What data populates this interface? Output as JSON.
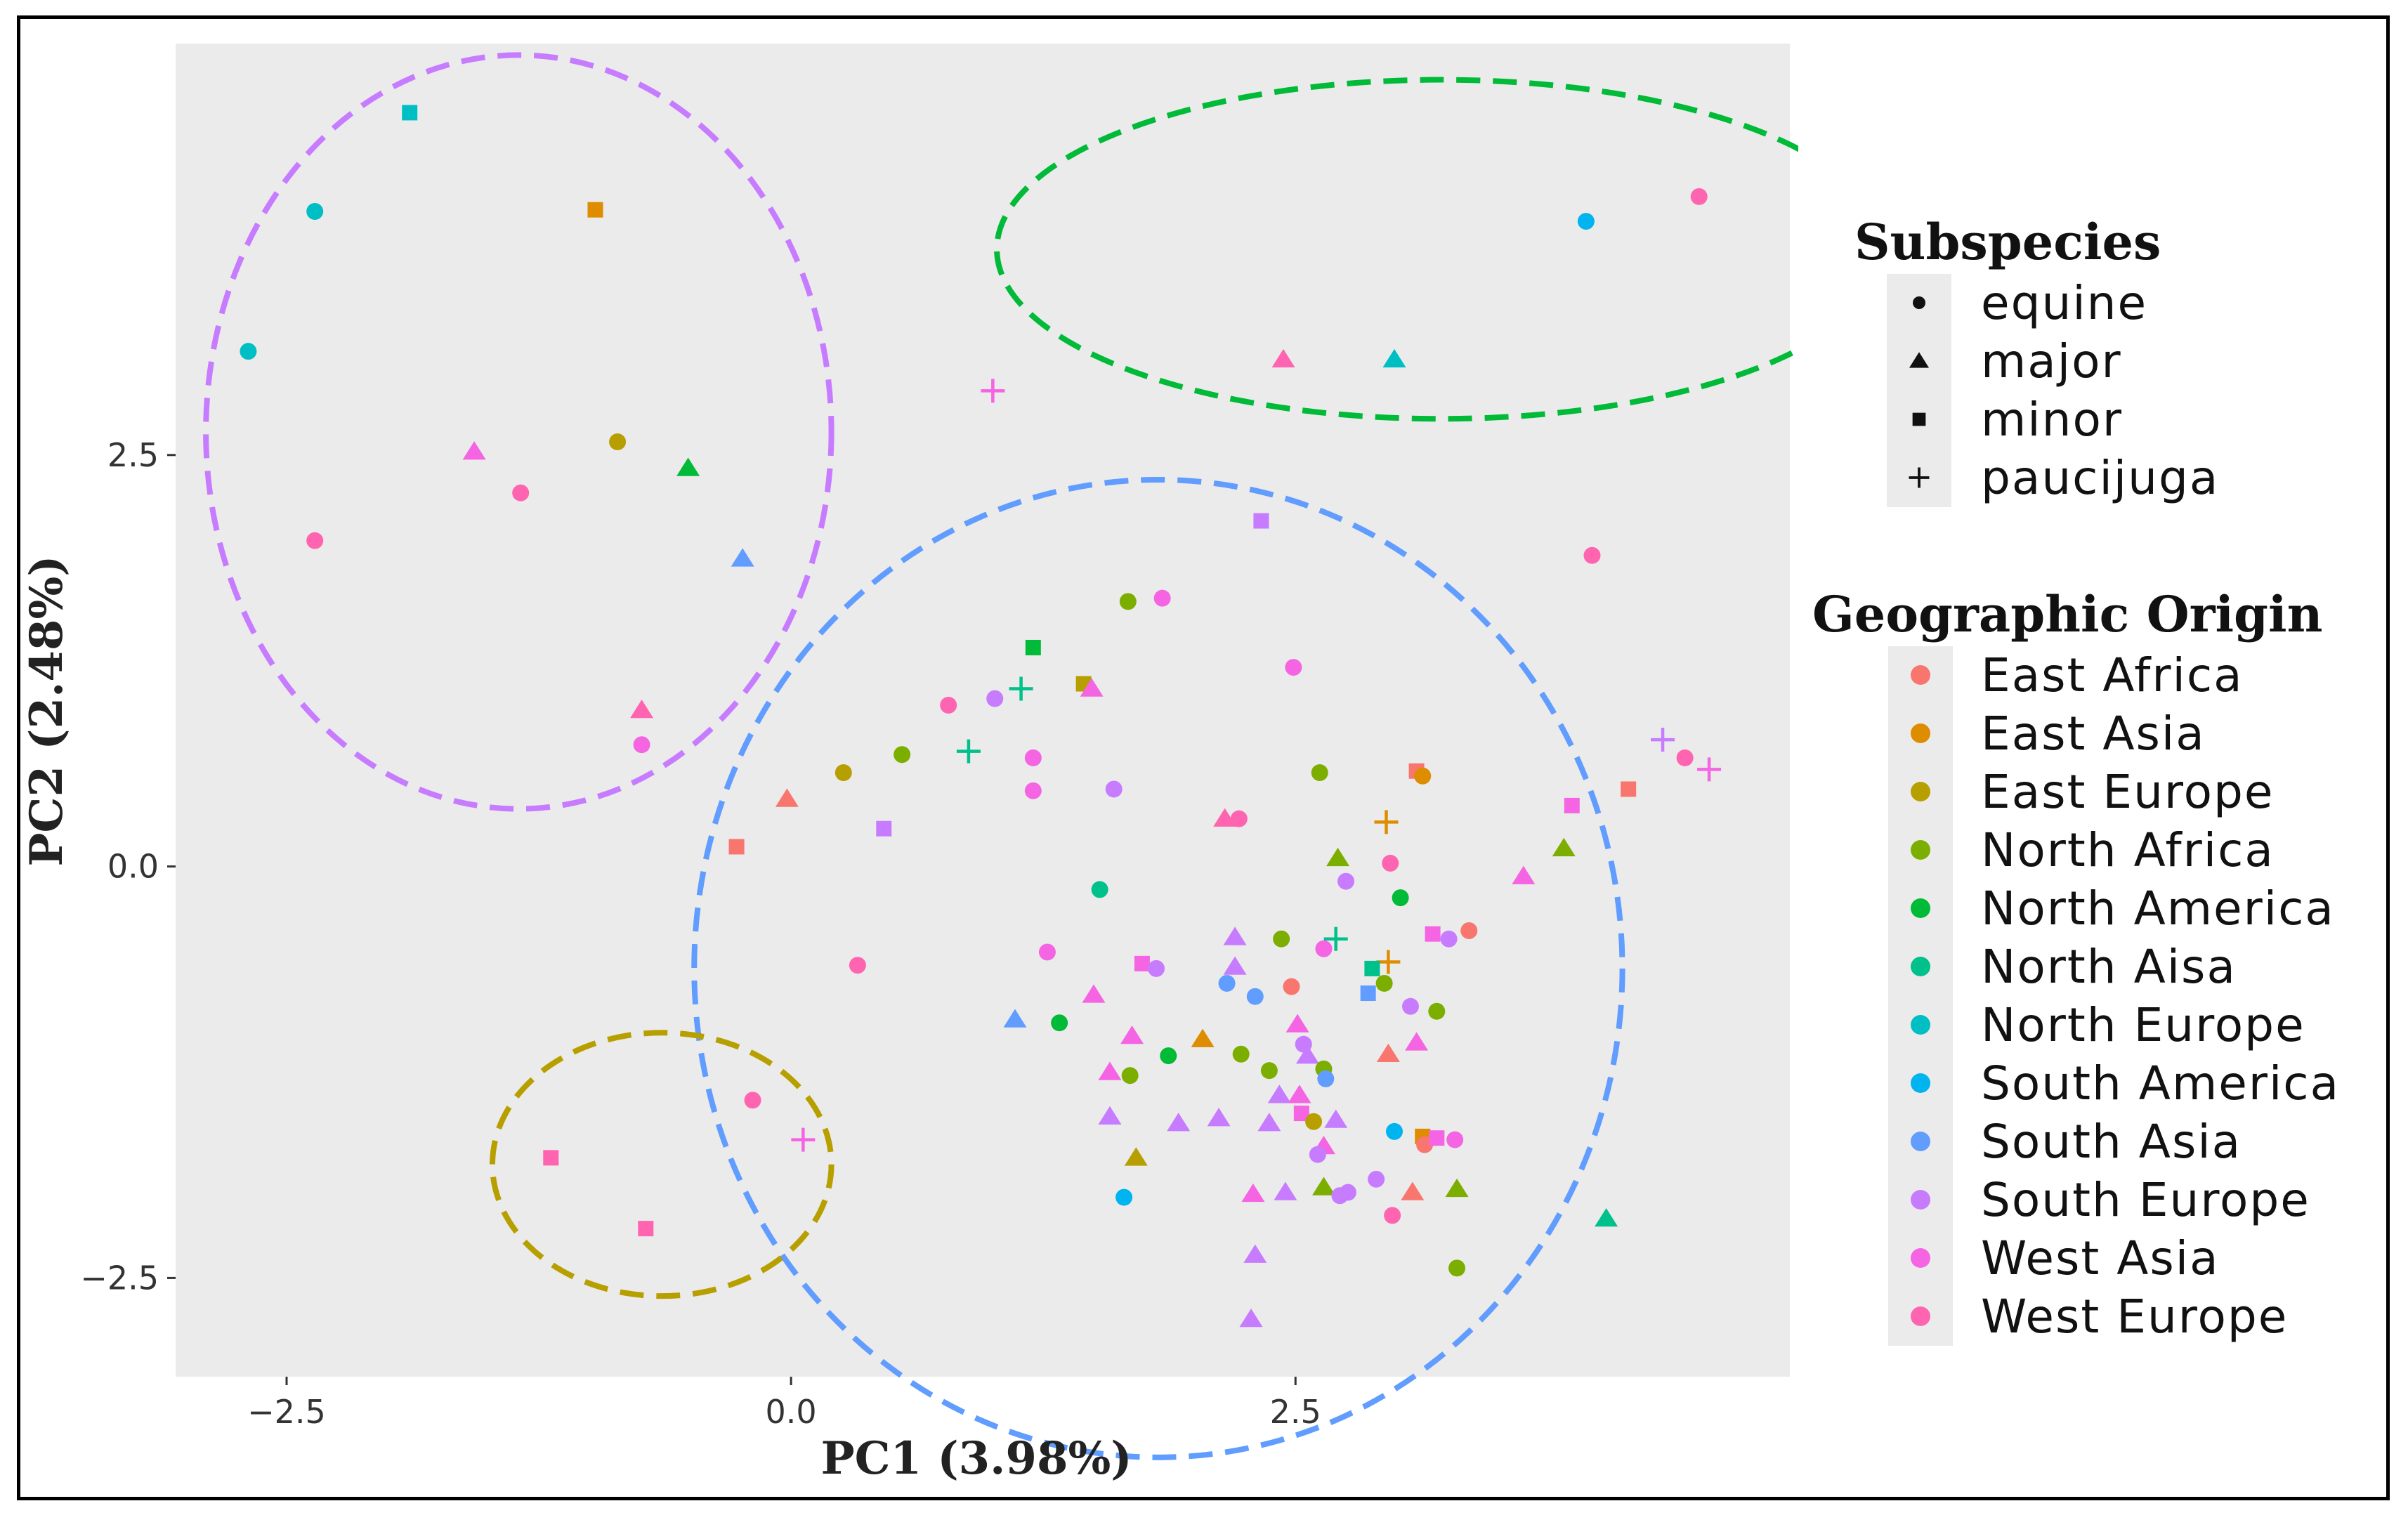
{
  "chart_data": {
    "type": "scatter",
    "title": "",
    "xlabel": "PC1 (3.98%)",
    "ylabel": "PC2 (2.48%)",
    "xlim": [
      -3.05,
      4.95
    ],
    "ylim": [
      -3.1,
      5.0
    ],
    "xticks": [
      -2.5,
      0.0,
      2.5
    ],
    "yticks": [
      2.5,
      0.0,
      -2.5
    ],
    "xtick_labels": [
      "−2.5",
      "0.0",
      "2.5"
    ],
    "ytick_labels": [
      "2.5",
      "0.0",
      "−2.5"
    ],
    "grid": false,
    "panel_background": "#ebebeb",
    "legend_subspecies": {
      "title": "Subspecies",
      "items": [
        {
          "label": "equine",
          "shape": "circle"
        },
        {
          "label": "major",
          "shape": "triangle"
        },
        {
          "label": "minor",
          "shape": "square"
        },
        {
          "label": "paucijuga",
          "shape": "plus"
        }
      ]
    },
    "legend_origin": {
      "title": "Geographic Origin",
      "items": [
        {
          "label": "East Africa",
          "color": "#F8766D"
        },
        {
          "label": "East Asia",
          "color": "#DE8C00"
        },
        {
          "label": "East Europe",
          "color": "#B79F00"
        },
        {
          "label": "North Africa",
          "color": "#7CAE00"
        },
        {
          "label": "North America",
          "color": "#00BA38"
        },
        {
          "label": "North Aisa",
          "color": "#00C08B"
        },
        {
          "label": "North Europe",
          "color": "#00BFC4"
        },
        {
          "label": "South America",
          "color": "#00B4F0"
        },
        {
          "label": "South Asia",
          "color": "#619CFF"
        },
        {
          "label": "South Europe",
          "color": "#C77CFF"
        },
        {
          "label": "West Asia",
          "color": "#F564E3"
        },
        {
          "label": "West Europe",
          "color": "#FF64B0"
        }
      ]
    },
    "ellipses": [
      {
        "name": "purple-cluster",
        "color": "#C77CFF",
        "cx": -1.35,
        "cy": 2.64,
        "rx": 1.55,
        "ry": 2.29
      },
      {
        "name": "green-cluster",
        "color": "#00BA38",
        "cx": 3.22,
        "cy": 3.75,
        "rx": 2.2,
        "ry": 1.03
      },
      {
        "name": "blue-cluster",
        "color": "#619CFF",
        "cx": 1.82,
        "cy": -0.62,
        "rx": 2.3,
        "ry": 2.97
      },
      {
        "name": "olive-cluster",
        "color": "#B79F00",
        "cx": -0.64,
        "cy": -1.81,
        "rx": 0.84,
        "ry": 0.8
      }
    ],
    "points": [
      {
        "x": -1.89,
        "y": 4.58,
        "shape": "square",
        "origin": "North Europe"
      },
      {
        "x": -2.36,
        "y": 3.98,
        "shape": "circle",
        "origin": "North Europe"
      },
      {
        "x": -0.97,
        "y": 3.99,
        "shape": "square",
        "origin": "East Asia"
      },
      {
        "x": -2.69,
        "y": 3.13,
        "shape": "circle",
        "origin": "North Europe"
      },
      {
        "x": -1.57,
        "y": 2.52,
        "shape": "triangle",
        "origin": "West Asia"
      },
      {
        "x": -0.86,
        "y": 2.58,
        "shape": "circle",
        "origin": "East Europe"
      },
      {
        "x": -0.51,
        "y": 2.42,
        "shape": "triangle",
        "origin": "North America"
      },
      {
        "x": -1.34,
        "y": 2.27,
        "shape": "circle",
        "origin": "West Europe"
      },
      {
        "x": -2.36,
        "y": 1.98,
        "shape": "circle",
        "origin": "West Europe"
      },
      {
        "x": -0.24,
        "y": 1.87,
        "shape": "triangle",
        "origin": "South Asia"
      },
      {
        "x": -0.74,
        "y": 0.95,
        "shape": "triangle",
        "origin": "West Europe"
      },
      {
        "x": -0.74,
        "y": 0.74,
        "shape": "circle",
        "origin": "West Asia"
      },
      {
        "x": -0.19,
        "y": -1.42,
        "shape": "circle",
        "origin": "West Europe"
      },
      {
        "x": -1.19,
        "y": -1.77,
        "shape": "square",
        "origin": "West Europe"
      },
      {
        "x": -0.72,
        "y": -2.2,
        "shape": "square",
        "origin": "West Europe"
      },
      {
        "x": 0.06,
        "y": -1.66,
        "shape": "plus",
        "origin": "West Asia"
      },
      {
        "x": 1.0,
        "y": 2.89,
        "shape": "plus",
        "origin": "West Asia"
      },
      {
        "x": 2.44,
        "y": 3.08,
        "shape": "triangle",
        "origin": "West Europe"
      },
      {
        "x": 2.99,
        "y": 3.08,
        "shape": "triangle",
        "origin": "North Europe"
      },
      {
        "x": 3.94,
        "y": 3.92,
        "shape": "circle",
        "origin": "South America"
      },
      {
        "x": 4.5,
        "y": 4.07,
        "shape": "circle",
        "origin": "West Europe"
      },
      {
        "x": 2.33,
        "y": 2.1,
        "shape": "square",
        "origin": "South Europe"
      },
      {
        "x": 3.97,
        "y": 1.89,
        "shape": "circle",
        "origin": "West Europe"
      },
      {
        "x": 1.67,
        "y": 1.61,
        "shape": "circle",
        "origin": "North Africa"
      },
      {
        "x": 1.84,
        "y": 1.63,
        "shape": "circle",
        "origin": "West Asia"
      },
      {
        "x": 1.2,
        "y": 1.33,
        "shape": "square",
        "origin": "North America"
      },
      {
        "x": 2.49,
        "y": 1.21,
        "shape": "circle",
        "origin": "West Asia"
      },
      {
        "x": 1.14,
        "y": 1.08,
        "shape": "plus",
        "origin": "North Aisa"
      },
      {
        "x": 1.45,
        "y": 1.11,
        "shape": "square",
        "origin": "East Europe"
      },
      {
        "x": 1.49,
        "y": 1.08,
        "shape": "triangle",
        "origin": "West Asia"
      },
      {
        "x": 0.78,
        "y": 0.98,
        "shape": "circle",
        "origin": "West Europe"
      },
      {
        "x": 1.01,
        "y": 1.02,
        "shape": "circle",
        "origin": "South Europe"
      },
      {
        "x": 0.88,
        "y": 0.7,
        "shape": "plus",
        "origin": "North Aisa"
      },
      {
        "x": 0.55,
        "y": 0.68,
        "shape": "circle",
        "origin": "North Africa"
      },
      {
        "x": 1.2,
        "y": 0.66,
        "shape": "circle",
        "origin": "West Asia"
      },
      {
        "x": 0.26,
        "y": 0.57,
        "shape": "circle",
        "origin": "East Europe"
      },
      {
        "x": -0.02,
        "y": 0.41,
        "shape": "triangle",
        "origin": "East Africa"
      },
      {
        "x": 1.2,
        "y": 0.46,
        "shape": "circle",
        "origin": "West Asia"
      },
      {
        "x": 1.6,
        "y": 0.47,
        "shape": "circle",
        "origin": "South Europe"
      },
      {
        "x": 2.62,
        "y": 0.57,
        "shape": "circle",
        "origin": "North Africa"
      },
      {
        "x": 3.1,
        "y": 0.58,
        "shape": "square",
        "origin": "East Africa"
      },
      {
        "x": 3.13,
        "y": 0.55,
        "shape": "circle",
        "origin": "East Asia"
      },
      {
        "x": 0.46,
        "y": 0.23,
        "shape": "square",
        "origin": "South Europe"
      },
      {
        "x": -0.27,
        "y": 0.12,
        "shape": "square",
        "origin": "East Africa"
      },
      {
        "x": 2.15,
        "y": 0.29,
        "shape": "triangle",
        "origin": "West Europe"
      },
      {
        "x": 2.22,
        "y": 0.29,
        "shape": "circle",
        "origin": "West Europe"
      },
      {
        "x": 2.95,
        "y": 0.27,
        "shape": "plus",
        "origin": "East Asia"
      },
      {
        "x": 3.87,
        "y": 0.37,
        "shape": "square",
        "origin": "West Asia"
      },
      {
        "x": 4.15,
        "y": 0.47,
        "shape": "square",
        "origin": "East Africa"
      },
      {
        "x": 4.32,
        "y": 0.77,
        "shape": "plus",
        "origin": "South Europe"
      },
      {
        "x": 4.43,
        "y": 0.66,
        "shape": "circle",
        "origin": "West Europe"
      },
      {
        "x": 4.55,
        "y": 0.59,
        "shape": "plus",
        "origin": "West Asia"
      },
      {
        "x": 2.71,
        "y": 0.05,
        "shape": "triangle",
        "origin": "North Africa"
      },
      {
        "x": 2.97,
        "y": 0.02,
        "shape": "circle",
        "origin": "West Europe"
      },
      {
        "x": 3.83,
        "y": 0.11,
        "shape": "triangle",
        "origin": "North Africa"
      },
      {
        "x": 3.63,
        "y": -0.06,
        "shape": "triangle",
        "origin": "West Asia"
      },
      {
        "x": 2.75,
        "y": -0.09,
        "shape": "circle",
        "origin": "South Europe"
      },
      {
        "x": 1.53,
        "y": -0.14,
        "shape": "circle",
        "origin": "North Aisa"
      },
      {
        "x": 3.02,
        "y": -0.19,
        "shape": "circle",
        "origin": "North America"
      },
      {
        "x": 3.36,
        "y": -0.39,
        "shape": "circle",
        "origin": "East Africa"
      },
      {
        "x": 3.18,
        "y": -0.41,
        "shape": "square",
        "origin": "West Asia"
      },
      {
        "x": 3.26,
        "y": -0.44,
        "shape": "circle",
        "origin": "South Europe"
      },
      {
        "x": 2.43,
        "y": -0.44,
        "shape": "circle",
        "origin": "North Africa"
      },
      {
        "x": 2.7,
        "y": -0.44,
        "shape": "plus",
        "origin": "North Aisa"
      },
      {
        "x": 2.64,
        "y": -0.5,
        "shape": "circle",
        "origin": "West Asia"
      },
      {
        "x": 2.2,
        "y": -0.43,
        "shape": "triangle",
        "origin": "South Europe"
      },
      {
        "x": 2.96,
        "y": -0.58,
        "shape": "plus",
        "origin": "East Asia"
      },
      {
        "x": 2.88,
        "y": -0.62,
        "shape": "square",
        "origin": "North Aisa"
      },
      {
        "x": 0.33,
        "y": -0.6,
        "shape": "circle",
        "origin": "West Europe"
      },
      {
        "x": 1.27,
        "y": -0.52,
        "shape": "circle",
        "origin": "West Asia"
      },
      {
        "x": 1.74,
        "y": -0.59,
        "shape": "square",
        "origin": "West Asia"
      },
      {
        "x": 1.81,
        "y": -0.62,
        "shape": "circle",
        "origin": "South Europe"
      },
      {
        "x": 2.2,
        "y": -0.61,
        "shape": "triangle",
        "origin": "South Europe"
      },
      {
        "x": 2.16,
        "y": -0.71,
        "shape": "circle",
        "origin": "South Asia"
      },
      {
        "x": 2.48,
        "y": -0.73,
        "shape": "circle",
        "origin": "East Africa"
      },
      {
        "x": 2.94,
        "y": -0.71,
        "shape": "circle",
        "origin": "North Africa"
      },
      {
        "x": 2.3,
        "y": -0.79,
        "shape": "circle",
        "origin": "South Asia"
      },
      {
        "x": 2.86,
        "y": -0.77,
        "shape": "square",
        "origin": "South Asia"
      },
      {
        "x": 1.5,
        "y": -0.78,
        "shape": "triangle",
        "origin": "West Asia"
      },
      {
        "x": 3.07,
        "y": -0.85,
        "shape": "circle",
        "origin": "South Europe"
      },
      {
        "x": 3.2,
        "y": -0.88,
        "shape": "circle",
        "origin": "North Africa"
      },
      {
        "x": 1.11,
        "y": -0.93,
        "shape": "triangle",
        "origin": "South Asia"
      },
      {
        "x": 1.33,
        "y": -0.95,
        "shape": "circle",
        "origin": "North America"
      },
      {
        "x": 2.51,
        "y": -0.96,
        "shape": "triangle",
        "origin": "West Asia"
      },
      {
        "x": 1.69,
        "y": -1.03,
        "shape": "triangle",
        "origin": "West Asia"
      },
      {
        "x": 2.04,
        "y": -1.05,
        "shape": "triangle",
        "origin": "East Asia"
      },
      {
        "x": 2.54,
        "y": -1.08,
        "shape": "circle",
        "origin": "South Europe"
      },
      {
        "x": 3.1,
        "y": -1.07,
        "shape": "triangle",
        "origin": "West Asia"
      },
      {
        "x": 2.23,
        "y": -1.14,
        "shape": "circle",
        "origin": "North Africa"
      },
      {
        "x": 2.96,
        "y": -1.14,
        "shape": "triangle",
        "origin": "East Africa"
      },
      {
        "x": 1.87,
        "y": -1.15,
        "shape": "circle",
        "origin": "North America"
      },
      {
        "x": 2.56,
        "y": -1.15,
        "shape": "triangle",
        "origin": "South Europe"
      },
      {
        "x": 1.58,
        "y": -1.25,
        "shape": "triangle",
        "origin": "West Asia"
      },
      {
        "x": 1.68,
        "y": -1.27,
        "shape": "circle",
        "origin": "North Africa"
      },
      {
        "x": 2.37,
        "y": -1.24,
        "shape": "circle",
        "origin": "North Africa"
      },
      {
        "x": 2.64,
        "y": -1.23,
        "shape": "circle",
        "origin": "North Africa"
      },
      {
        "x": 2.65,
        "y": -1.29,
        "shape": "circle",
        "origin": "South Asia"
      },
      {
        "x": 2.42,
        "y": -1.39,
        "shape": "triangle",
        "origin": "South Europe"
      },
      {
        "x": 2.52,
        "y": -1.39,
        "shape": "triangle",
        "origin": "West Asia"
      },
      {
        "x": 1.58,
        "y": -1.52,
        "shape": "triangle",
        "origin": "South Europe"
      },
      {
        "x": 1.92,
        "y": -1.56,
        "shape": "triangle",
        "origin": "South Europe"
      },
      {
        "x": 2.12,
        "y": -1.53,
        "shape": "triangle",
        "origin": "South Europe"
      },
      {
        "x": 2.37,
        "y": -1.56,
        "shape": "triangle",
        "origin": "South Europe"
      },
      {
        "x": 2.53,
        "y": -1.5,
        "shape": "square",
        "origin": "West Asia"
      },
      {
        "x": 2.59,
        "y": -1.55,
        "shape": "circle",
        "origin": "East Europe"
      },
      {
        "x": 2.7,
        "y": -1.54,
        "shape": "triangle",
        "origin": "South Europe"
      },
      {
        "x": 2.99,
        "y": -1.61,
        "shape": "circle",
        "origin": "South America"
      },
      {
        "x": 3.13,
        "y": -1.64,
        "shape": "square",
        "origin": "East Asia"
      },
      {
        "x": 3.14,
        "y": -1.69,
        "shape": "circle",
        "origin": "East Africa"
      },
      {
        "x": 3.2,
        "y": -1.65,
        "shape": "square",
        "origin": "West Asia"
      },
      {
        "x": 3.29,
        "y": -1.66,
        "shape": "circle",
        "origin": "West Asia"
      },
      {
        "x": 2.64,
        "y": -1.7,
        "shape": "triangle",
        "origin": "West Asia"
      },
      {
        "x": 2.61,
        "y": -1.75,
        "shape": "circle",
        "origin": "South Europe"
      },
      {
        "x": 1.71,
        "y": -1.77,
        "shape": "triangle",
        "origin": "East Europe"
      },
      {
        "x": 1.65,
        "y": -2.01,
        "shape": "circle",
        "origin": "South America"
      },
      {
        "x": 2.29,
        "y": -1.99,
        "shape": "triangle",
        "origin": "West Asia"
      },
      {
        "x": 2.45,
        "y": -1.98,
        "shape": "triangle",
        "origin": "South Europe"
      },
      {
        "x": 2.64,
        "y": -1.95,
        "shape": "triangle",
        "origin": "North Africa"
      },
      {
        "x": 2.72,
        "y": -2.0,
        "shape": "circle",
        "origin": "South Europe"
      },
      {
        "x": 2.76,
        "y": -1.98,
        "shape": "circle",
        "origin": "South Europe"
      },
      {
        "x": 2.9,
        "y": -1.9,
        "shape": "circle",
        "origin": "South Europe"
      },
      {
        "x": 3.08,
        "y": -1.98,
        "shape": "triangle",
        "origin": "East Africa"
      },
      {
        "x": 3.3,
        "y": -1.96,
        "shape": "triangle",
        "origin": "North Africa"
      },
      {
        "x": 2.98,
        "y": -2.12,
        "shape": "circle",
        "origin": "West Europe"
      },
      {
        "x": 4.04,
        "y": -2.14,
        "shape": "triangle",
        "origin": "North Aisa"
      },
      {
        "x": 2.3,
        "y": -2.36,
        "shape": "triangle",
        "origin": "South Europe"
      },
      {
        "x": 3.3,
        "y": -2.44,
        "shape": "circle",
        "origin": "North Africa"
      },
      {
        "x": 2.28,
        "y": -2.75,
        "shape": "triangle",
        "origin": "South Europe"
      }
    ]
  }
}
